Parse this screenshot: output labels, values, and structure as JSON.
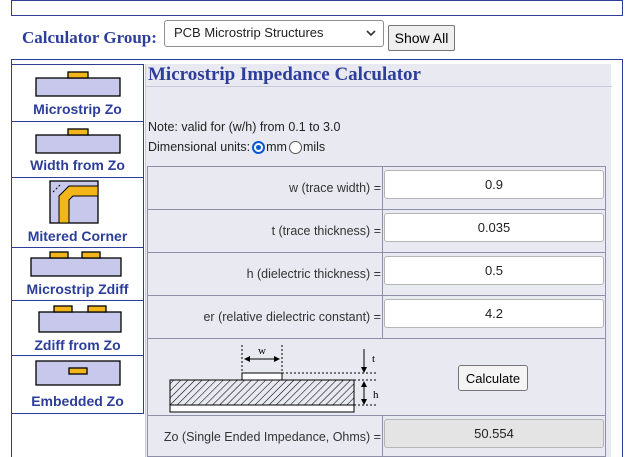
{
  "header": {
    "group_label": "Calculator Group:",
    "group_select_value": "PCB Microstrip Structures",
    "show_all_label": "Show All"
  },
  "sidebar": {
    "items": [
      {
        "label": "Microstrip Zo",
        "icon": "microstrip-icon"
      },
      {
        "label": "Width from Zo",
        "icon": "width-from-zo-icon"
      },
      {
        "label": "Mitered Corner",
        "icon": "mitered-corner-icon"
      },
      {
        "label": "Microstrip Zdiff",
        "icon": "microstrip-zdiff-icon"
      },
      {
        "label": "Zdiff from Zo",
        "icon": "zdiff-from-zo-icon"
      },
      {
        "label": "Embedded Zo",
        "icon": "embedded-zo-icon"
      }
    ]
  },
  "main": {
    "title": "Microstrip Impedance Calculator",
    "note": "Note: valid for (w/h) from 0.1 to 3.0",
    "units_label": "Dimensional units:",
    "unit_mm": "mm",
    "unit_mils": "mils",
    "selected_unit": "mm",
    "fields": [
      {
        "label": "w (trace width) =",
        "value": "0.9"
      },
      {
        "label": "t (trace thickness) =",
        "value": "0.035"
      },
      {
        "label": "h (dielectric thickness) =",
        "value": "0.5"
      },
      {
        "label": "er (relative dielectric constant) =",
        "value": "4.2"
      }
    ],
    "diagram_labels": {
      "w": "w",
      "t": "t",
      "h": "h"
    },
    "calculate_label": "Calculate",
    "result_label": "Zo (Single Ended Impedance, Ohms) =",
    "result_value": "50.554"
  },
  "colors": {
    "accent": "#2c3e9a",
    "panel_bg": "#e9e9f2",
    "copper": "#f2b51a",
    "dielectric": "#c8c8ec"
  }
}
